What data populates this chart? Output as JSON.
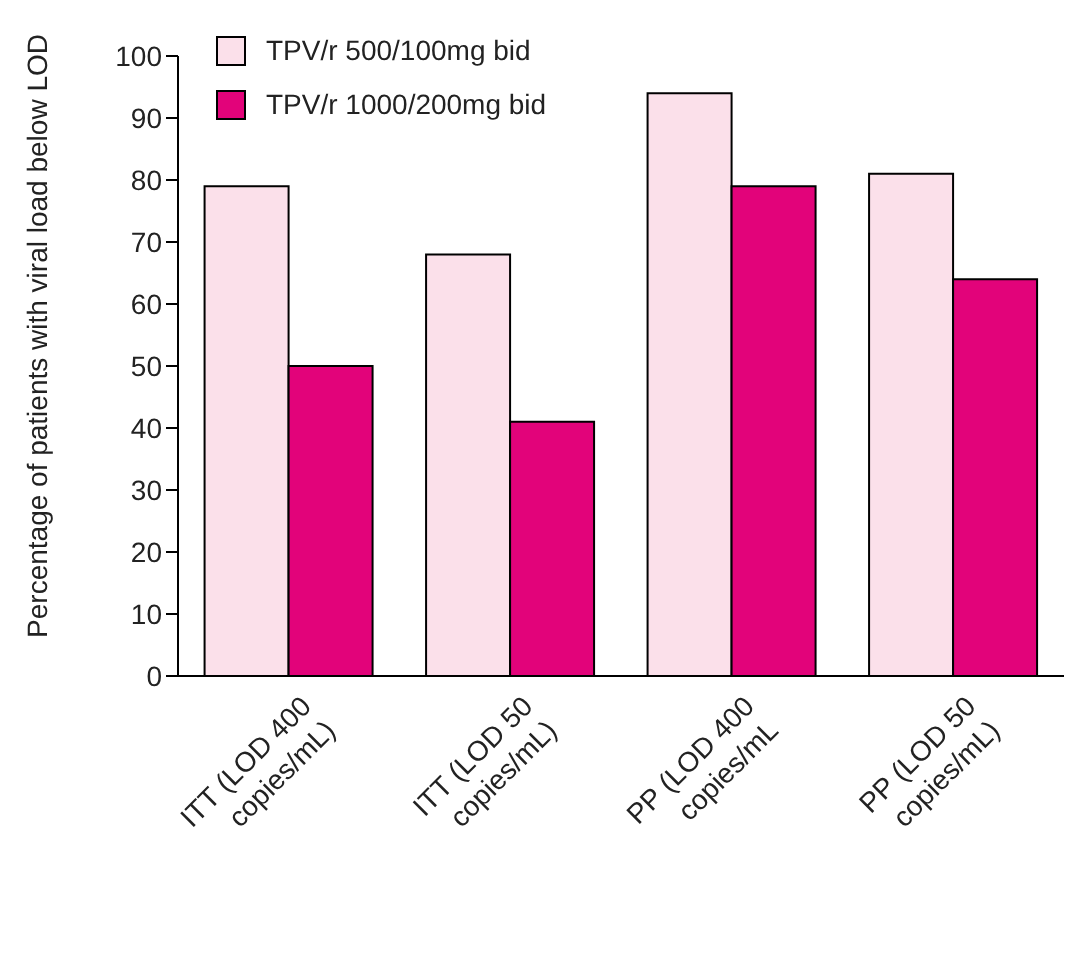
{
  "chart_data": {
    "type": "bar",
    "ylabel": "Percentage of patients with viral load below LOD",
    "categories": [
      "ITT (LOD 400 copies/mL)",
      "ITT (LOD 50 copies/mL)",
      "PP (LOD 400 copies/mL",
      "PP (LOD 50 copies/mL)"
    ],
    "series": [
      {
        "name": "TPV/r 500/100mg bid",
        "color": "#fbe0ea",
        "values": [
          79,
          68,
          94,
          81
        ]
      },
      {
        "name": "TPV/r 1000/200mg bid",
        "color": "#e2037a",
        "values": [
          50,
          41,
          79,
          64
        ]
      }
    ],
    "ylim": [
      0,
      100
    ],
    "yticks": [
      0,
      10,
      20,
      30,
      40,
      50,
      60,
      70,
      80,
      90,
      100
    ],
    "grid": false,
    "legend": "top left"
  }
}
